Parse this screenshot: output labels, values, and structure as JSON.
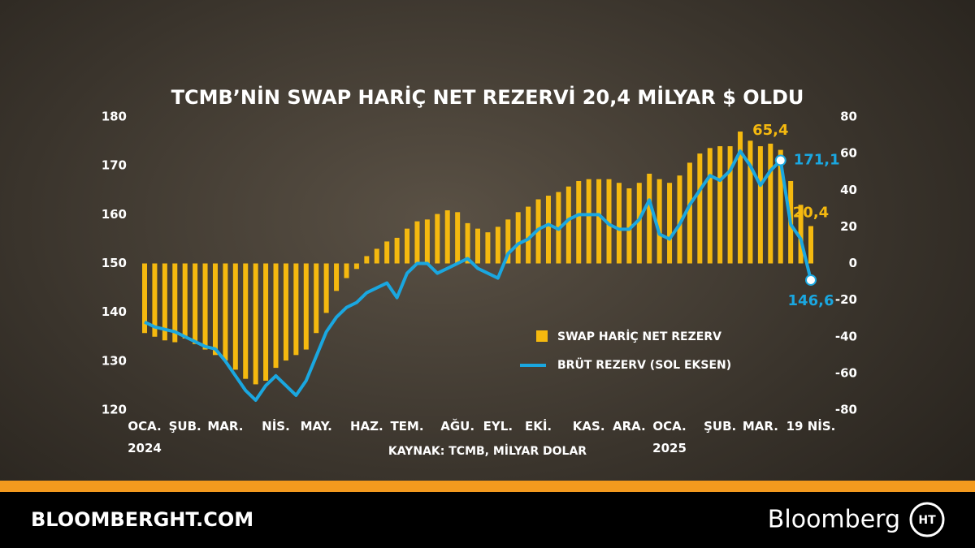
{
  "chart_data": {
    "type": "bar-line",
    "title": "TCMB’NİN SWAP HARİÇ NET REZERVİ 20,4 MİLYAR $ OLDU",
    "source": "KAYNAK: TCMB, MİLYAR DOLAR",
    "categories": [
      "OCA.\n2024",
      null,
      null,
      null,
      "ŞUB.",
      null,
      null,
      null,
      "MAR.",
      null,
      null,
      null,
      null,
      "NİS.",
      null,
      null,
      null,
      "MAY.",
      null,
      null,
      null,
      null,
      "HAZ.",
      null,
      null,
      null,
      "TEM.",
      null,
      null,
      null,
      null,
      "AĞU.",
      null,
      null,
      null,
      "EYL.",
      null,
      null,
      null,
      "EKİ.",
      null,
      null,
      null,
      null,
      "KAS.",
      null,
      null,
      null,
      "ARA.",
      null,
      null,
      null,
      "OCA.\n2025",
      null,
      null,
      null,
      null,
      "ŞUB.",
      null,
      null,
      null,
      "MAR.",
      null,
      null,
      null,
      null,
      "19 NİS."
    ],
    "series": [
      {
        "name": "SWAP HARİÇ NET REZERV",
        "color": "#f5b90f",
        "axis": "y2",
        "values": [
          -38,
          -40,
          -42,
          -43,
          -41,
          -44,
          -47,
          -50,
          -53,
          -58,
          -63,
          -66,
          -64,
          -57,
          -53,
          -50,
          -47,
          -38,
          -27,
          -15,
          -8,
          -3,
          4,
          8,
          12,
          14,
          19,
          23,
          24,
          27,
          29,
          28,
          22,
          19,
          17,
          20,
          24,
          28,
          31,
          35,
          37,
          39,
          42,
          45,
          46,
          46,
          46,
          44,
          41,
          44,
          49,
          46,
          44,
          48,
          55,
          60,
          63,
          64,
          64,
          72,
          67,
          64,
          65.4,
          62,
          45,
          32,
          20.4
        ],
        "value_labels": [
          null,
          null,
          null,
          null,
          null,
          null,
          null,
          null,
          null,
          null,
          null,
          null,
          null,
          null,
          null,
          null,
          null,
          null,
          null,
          null,
          null,
          null,
          null,
          null,
          null,
          null,
          null,
          null,
          null,
          null,
          null,
          null,
          null,
          null,
          null,
          null,
          null,
          null,
          null,
          null,
          null,
          null,
          null,
          null,
          null,
          null,
          null,
          null,
          null,
          null,
          null,
          null,
          null,
          null,
          null,
          null,
          null,
          null,
          null,
          null,
          null,
          null,
          "65,4",
          null,
          null,
          null,
          "20,4"
        ]
      },
      {
        "name": "BRÜT REZERV (SOL EKSEN)",
        "color": "#1aa7e0",
        "axis": "y",
        "values": [
          138,
          137,
          136.5,
          136,
          135,
          134,
          133,
          132.5,
          130,
          127,
          124,
          122,
          125,
          127,
          125,
          123,
          126,
          131,
          136,
          139,
          141,
          142,
          144,
          145,
          146,
          143,
          148,
          150,
          150,
          148,
          149,
          150,
          151,
          149,
          148,
          147,
          152,
          154,
          155,
          157,
          158,
          157,
          159,
          160,
          160,
          160,
          158,
          157,
          157,
          159,
          163,
          156,
          155,
          158,
          162,
          165,
          168,
          167,
          169,
          173,
          170,
          166,
          169,
          171.1,
          158,
          155,
          146.6
        ],
        "value_labels": [
          null,
          null,
          null,
          null,
          null,
          null,
          null,
          null,
          null,
          null,
          null,
          null,
          null,
          null,
          null,
          null,
          null,
          null,
          null,
          null,
          null,
          null,
          null,
          null,
          null,
          null,
          null,
          null,
          null,
          null,
          null,
          null,
          null,
          null,
          null,
          null,
          null,
          null,
          null,
          null,
          null,
          null,
          null,
          null,
          null,
          null,
          null,
          null,
          null,
          null,
          null,
          null,
          null,
          null,
          null,
          null,
          null,
          null,
          null,
          null,
          null,
          null,
          null,
          "171,1",
          null,
          null,
          "146,6"
        ]
      }
    ],
    "ylim": [
      120,
      180
    ],
    "yticks": [
      120,
      130,
      140,
      150,
      160,
      170,
      180
    ],
    "y2lim": [
      -80,
      80
    ],
    "y2ticks": [
      -80,
      -60,
      -40,
      -20,
      0,
      20,
      40,
      60,
      80
    ]
  },
  "footer": {
    "site": "BLOOMBERGHT.COM",
    "brand": "Bloomberg"
  }
}
